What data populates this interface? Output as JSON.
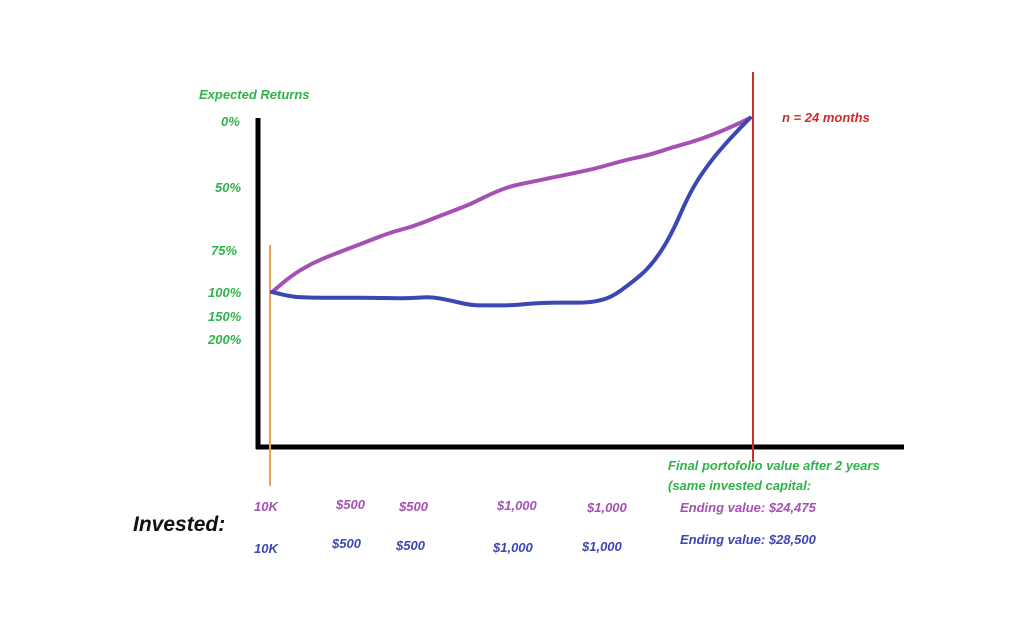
{
  "colors": {
    "purple_line": "#a550b4",
    "blue_line": "#3c46b4",
    "green_text": "#2fb44a",
    "red_marker": "#d42a2a",
    "orange_marker": "#f0a050",
    "axis": "#000000"
  },
  "chart_data": {
    "type": "line",
    "title": "",
    "ylabel": "Expected Returns",
    "xlabel": "",
    "y_tick_labels": [
      "0%",
      "50%",
      "75%",
      "100%",
      "150%",
      "200%"
    ],
    "marker_label": "n = 24 months",
    "x_range_months": [
      0,
      24
    ],
    "series": [
      {
        "name": "purple",
        "x": [
          0,
          1,
          2,
          3,
          4,
          5,
          6,
          7,
          8,
          9,
          10,
          11,
          12,
          13,
          14,
          15,
          16,
          17,
          18,
          19,
          20,
          21,
          22,
          23,
          24
        ],
        "y": [
          100,
          90,
          83,
          78,
          74,
          71,
          68,
          66,
          63,
          60,
          57,
          53,
          50,
          47,
          44,
          41,
          38,
          34,
          30,
          27,
          22,
          18,
          13,
          7,
          0
        ]
      },
      {
        "name": "blue",
        "x": [
          0,
          1,
          2,
          3,
          4,
          5,
          6,
          7,
          8,
          9,
          10,
          11,
          12,
          13,
          14,
          15,
          16,
          17,
          18,
          19,
          20,
          21,
          22,
          23,
          24
        ],
        "y": [
          100,
          110,
          112,
          112,
          112,
          112,
          113,
          113,
          110,
          118,
          128,
          128,
          128,
          124,
          122,
          122,
          122,
          112,
          95,
          85,
          70,
          52,
          32,
          15,
          0
        ]
      }
    ]
  },
  "summary": {
    "final_title_line1": "Final portofolio value after 2 years",
    "final_title_line2": "(same invested capital:",
    "ending_purple": "Ending value: $24,475",
    "ending_blue": "Ending value: $28,500"
  },
  "invested": {
    "label": "Invested:",
    "purple": [
      "10K",
      "$500",
      "$500",
      "$1,000",
      "$1,000"
    ],
    "blue": [
      "10K",
      "$500",
      "$500",
      "$1,000",
      "$1,000"
    ]
  }
}
